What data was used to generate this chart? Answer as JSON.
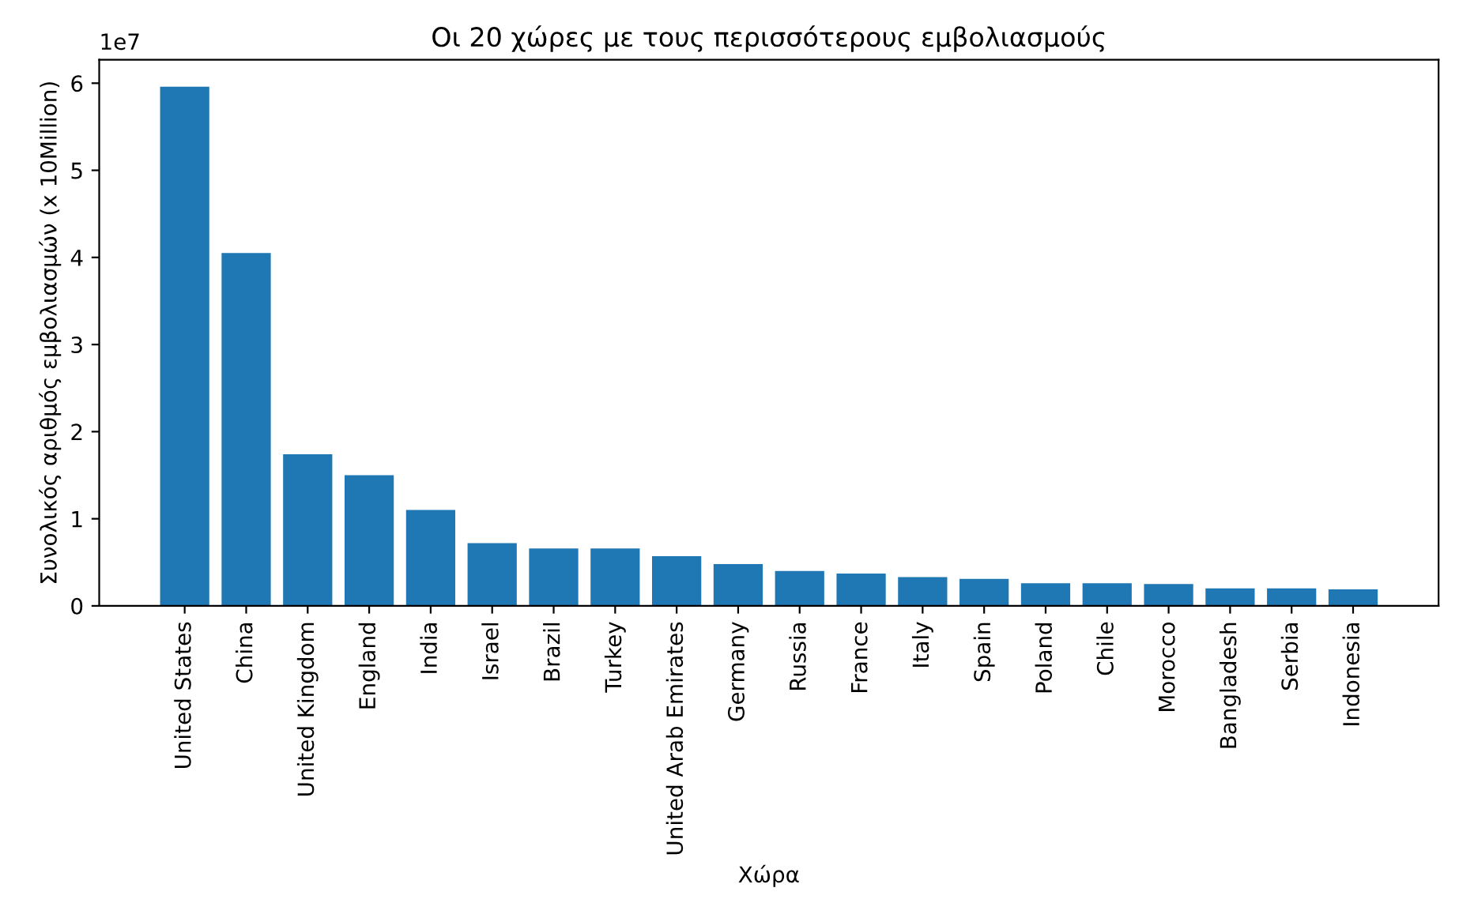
{
  "chart_data": {
    "type": "bar",
    "title": "Οι 20 χώρες με τους περισσότερους εμβολιασμούς",
    "xlabel": "Χώρα",
    "ylabel": "Συνολικός αριθμός εμβολιασμών (x 10Million)",
    "annotations": [
      "1e7"
    ],
    "categories": [
      "United States",
      "China",
      "United Kingdom",
      "England",
      "India",
      "Israel",
      "Brazil",
      "Turkey",
      "United Arab Emirates",
      "Germany",
      "Russia",
      "France",
      "Italy",
      "Spain",
      "Poland",
      "Chile",
      "Morocco",
      "Bangladesh",
      "Serbia",
      "Indonesia"
    ],
    "values": [
      5.96,
      4.05,
      1.74,
      1.5,
      1.1,
      0.72,
      0.66,
      0.66,
      0.57,
      0.48,
      0.4,
      0.37,
      0.33,
      0.31,
      0.26,
      0.26,
      0.25,
      0.2,
      0.2,
      0.19
    ],
    "color": "#1f77b4",
    "ylim": [
      0,
      6.27
    ],
    "yticks": [
      0,
      1,
      2,
      3,
      4,
      5,
      6
    ],
    "grid": false
  }
}
